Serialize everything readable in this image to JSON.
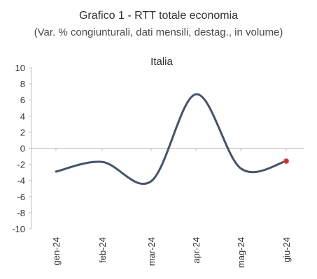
{
  "chart_data": {
    "type": "line",
    "title": "Grafico 1 - RTT totale economia",
    "subtitle": "(Var. % congiunturali, dati mensili, destag., in volume)",
    "panel_title": "Italia",
    "categories": [
      "gen-24",
      "feb-24",
      "mar-24",
      "apr-24",
      "mag-24",
      "giu-24"
    ],
    "series": [
      {
        "values": [
          -2.9,
          -1.7,
          -4.1,
          6.7,
          -2.5,
          -1.6
        ],
        "color": "#44546a",
        "marker_last": true,
        "marker_color": "#c0392b"
      }
    ],
    "yticks": [
      10,
      8,
      6,
      4,
      2,
      0,
      -2,
      -4,
      -6,
      -8,
      -10
    ],
    "ylim": [
      -10,
      10
    ],
    "smooth": true,
    "grid": false
  }
}
